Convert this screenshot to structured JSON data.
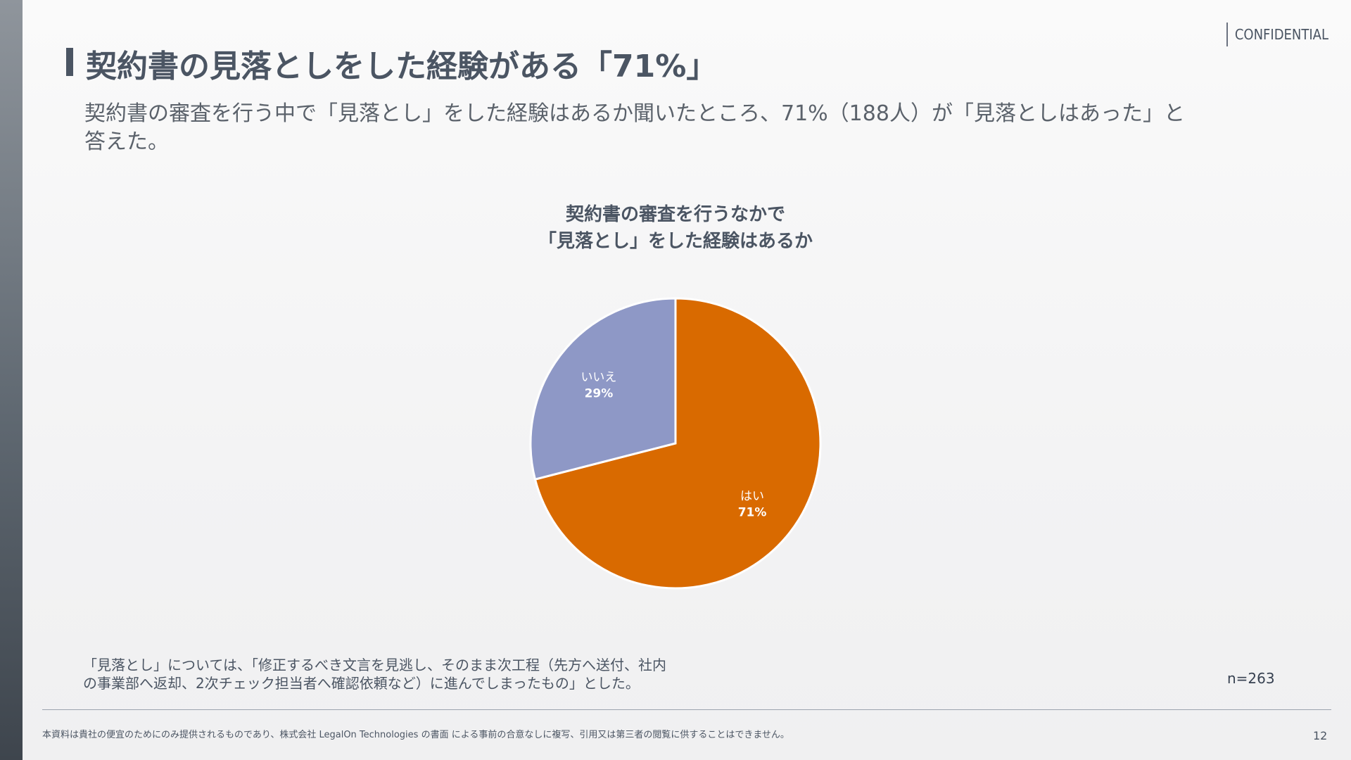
{
  "header": {
    "confidential": "CONFIDENTIAL",
    "title": "契約書の見落としをした経験がある「71%」"
  },
  "lead": {
    "line1": "契約書の審査を行う中で「見落とし」をした経験はあるか聞いたところ、71%（188人）が「見落としはあった」と",
    "line2": "答えた。"
  },
  "chart_data": {
    "type": "pie",
    "title_lines": [
      "契約書の審査を行うなかで",
      "「見落とし」をした経験はあるか"
    ],
    "slices": [
      {
        "label": "はい",
        "value": 71,
        "value_label": "71%",
        "color": "#d96a00"
      },
      {
        "label": "いいえ",
        "value": 29,
        "value_label": "29%",
        "color": "#8e98c6"
      }
    ],
    "start": "12 o'clock",
    "direction": "clockwise",
    "label_color": "#ffffff",
    "edge_color": "#ffffff"
  },
  "footnote": {
    "line1": "「見落とし」については、「修正するべき文言を見逃し、そのまま次工程（先方へ送付、社内",
    "line2": "の事業部へ返却、2次チェック担当者へ確認依頼など）に進んでしまったもの」とした。"
  },
  "sample_size": "n=263",
  "footer": {
    "disclaimer": "本資料は貴社の便宜のためにのみ提供されるものであり、株式会社 LegalOn Technologies の書面 による事前の合意なしに複写、引用又は第三者の閲覧に供することはできません。",
    "page_number": "12"
  }
}
